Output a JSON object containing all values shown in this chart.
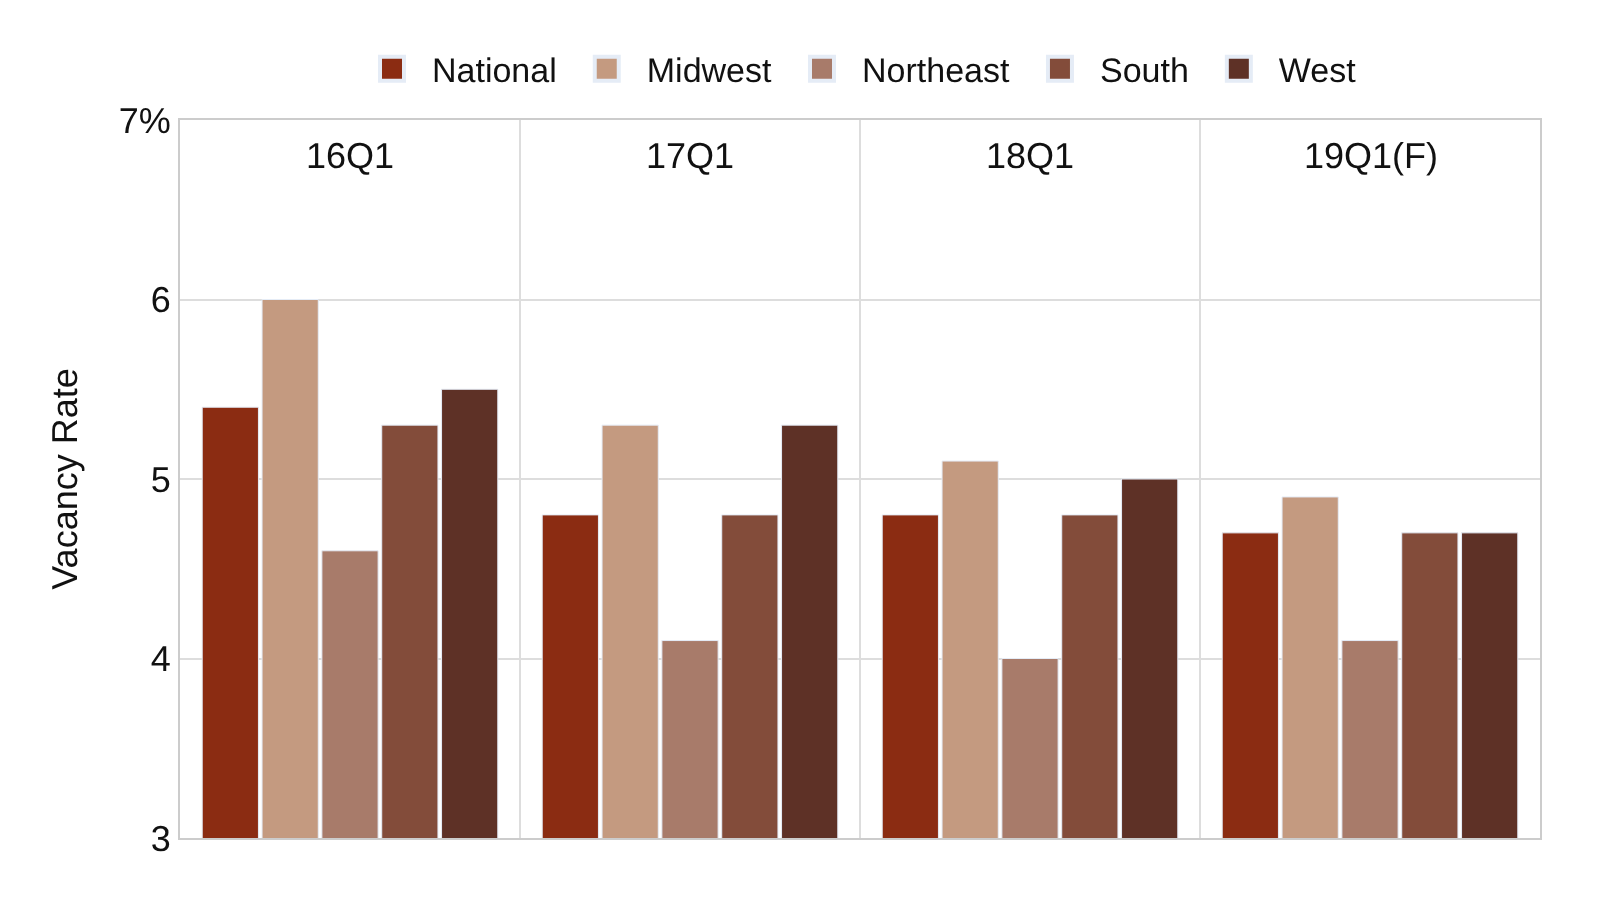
{
  "chart_data": {
    "type": "bar",
    "ylabel": "Vacancy Rate",
    "categories": [
      "16Q1",
      "17Q1",
      "18Q1",
      "19Q1(F)"
    ],
    "series": [
      {
        "name": "National",
        "color": "#8b2c12",
        "values": [
          5.4,
          4.8,
          4.8,
          4.7
        ]
      },
      {
        "name": "Midwest",
        "color": "#c49a80",
        "values": [
          6.0,
          5.3,
          5.1,
          4.9
        ]
      },
      {
        "name": "Northeast",
        "color": "#a87b6a",
        "values": [
          4.6,
          4.1,
          4.0,
          4.1
        ]
      },
      {
        "name": "South",
        "color": "#834c3a",
        "values": [
          5.3,
          4.8,
          4.8,
          4.7
        ]
      },
      {
        "name": "West",
        "color": "#5e3126",
        "values": [
          5.5,
          5.3,
          5.0,
          4.7
        ]
      }
    ],
    "ylim": [
      3,
      7
    ],
    "yticks": [
      3,
      4,
      5,
      6,
      {
        "value": 7,
        "label": "7%"
      }
    ],
    "grid": true,
    "legend": "top"
  }
}
